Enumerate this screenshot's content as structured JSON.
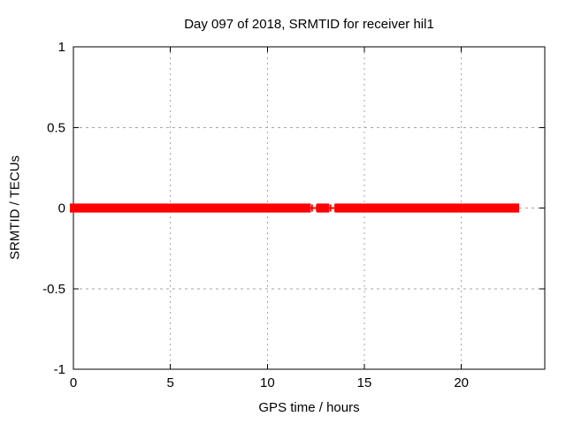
{
  "window": {
    "background": "#ffffff"
  },
  "chart_data": {
    "type": "scatter",
    "title": "Day 097 of 2018, SRMTID for receiver hil1",
    "xlabel": "GPS time / hours",
    "ylabel": "SRMTID / TECUs",
    "xlim": [
      0,
      24.3
    ],
    "ylim": [
      -1,
      1
    ],
    "xticks": [
      0,
      5,
      10,
      15,
      20
    ],
    "yticks": [
      -1,
      -0.5,
      0,
      0.5,
      1
    ],
    "grid": "dashed",
    "legend": "none",
    "marker": "plus",
    "colors": {
      "data": "#ff0000",
      "grid": "#a6a6a6",
      "axis": "#000000",
      "background": "#ffffff"
    },
    "series": [
      {
        "name": "SRMTID",
        "y_value": 0,
        "value_spread": 0.028,
        "dense_segments_hours": [
          [
            0.0,
            10.2
          ],
          [
            10.5,
            12.05
          ],
          [
            12.72,
            13.0
          ],
          [
            13.65,
            22.8
          ]
        ],
        "isolated_points_hours": [
          12.3,
          12.55,
          13.25,
          13.5
        ]
      }
    ]
  }
}
